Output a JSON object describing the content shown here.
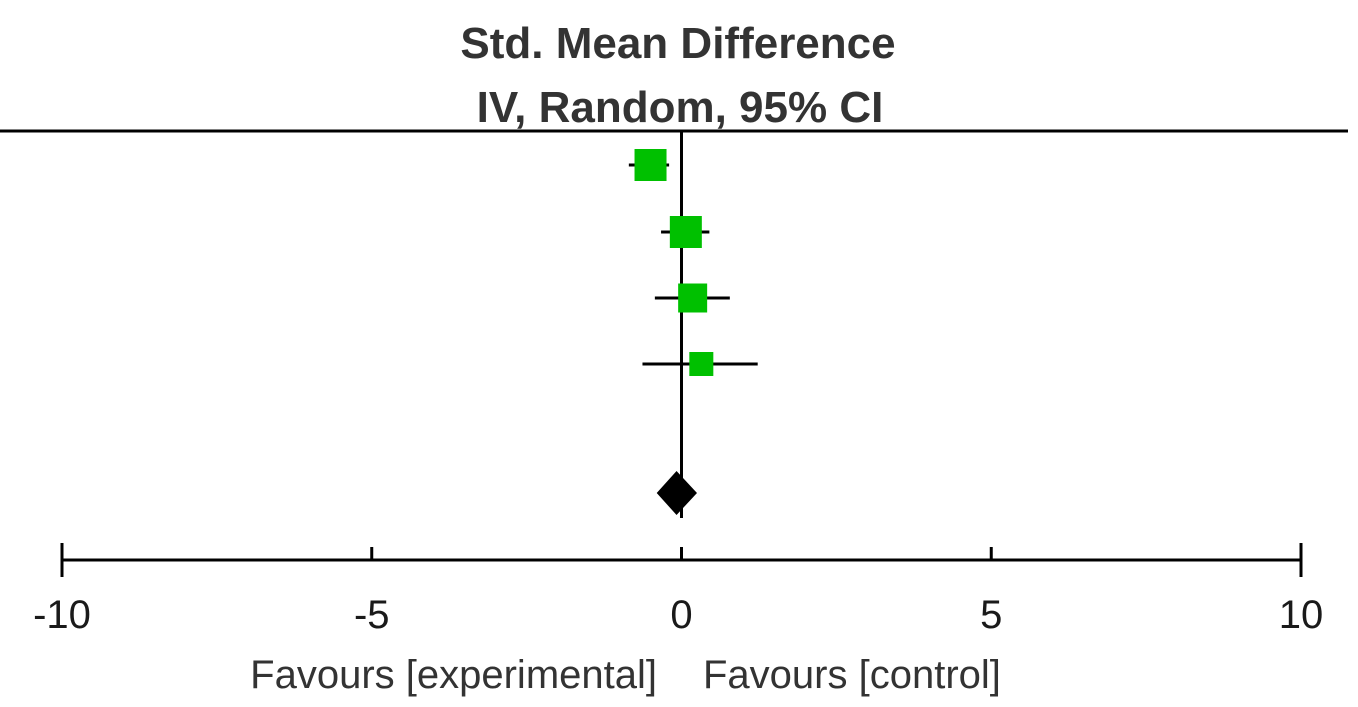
{
  "chart_data": {
    "type": "forest",
    "header_line1": "Std. Mean Difference",
    "header_line2": "IV, Random, 95% CI",
    "xlim": [
      -10,
      10
    ],
    "ticks": [
      -10,
      -5,
      0,
      5,
      10
    ],
    "tick_labels": [
      "-10",
      "-5",
      "0",
      "5",
      "10"
    ],
    "studies": [
      {
        "estimate": -0.5,
        "ci_low": -0.85,
        "ci_high": -0.2,
        "weight": 1.0
      },
      {
        "estimate": 0.07,
        "ci_low": -0.33,
        "ci_high": 0.45,
        "weight": 1.0
      },
      {
        "estimate": 0.18,
        "ci_low": -0.43,
        "ci_high": 0.78,
        "weight": 0.85
      },
      {
        "estimate": 0.32,
        "ci_low": -0.63,
        "ci_high": 1.23,
        "weight": 0.6
      }
    ],
    "pooled": {
      "estimate": -0.08,
      "ci_low": -0.4,
      "ci_high": 0.25
    },
    "favours_left": "Favours [experimental]",
    "favours_right": "Favours [control]",
    "colors": {
      "study_marker": "#00c000",
      "pooled_marker": "#000000",
      "lines": "#000000"
    }
  }
}
